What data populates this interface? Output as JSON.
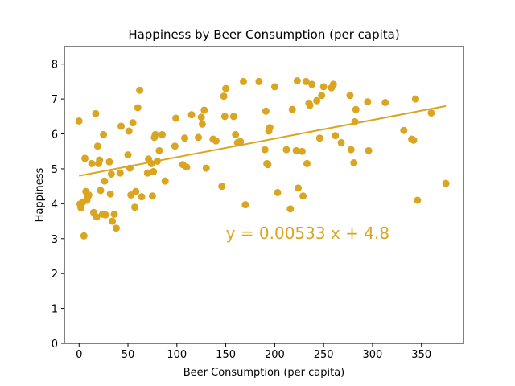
{
  "chart_data": {
    "type": "scatter",
    "title": "Happiness by Beer Consumption (per capita)",
    "xlabel": "Beer Consumption (per capita)",
    "ylabel": "Happiness",
    "xlim": [
      -15,
      393
    ],
    "ylim": [
      0,
      8.5
    ],
    "xticks": [
      0,
      50,
      100,
      150,
      200,
      250,
      300,
      350
    ],
    "yticks": [
      0,
      1,
      2,
      3,
      4,
      5,
      6,
      7,
      8
    ],
    "grid": false,
    "legend": "none",
    "color": "#DAA520",
    "series": [
      {
        "points": [
          [
            0,
            6.37
          ],
          [
            1,
            3.99
          ],
          [
            2,
            3.88
          ],
          [
            4,
            4.05
          ],
          [
            5,
            3.08
          ],
          [
            6,
            5.3
          ],
          [
            7,
            4.35
          ],
          [
            8,
            4.1
          ],
          [
            9,
            4.2
          ],
          [
            10,
            4.25
          ],
          [
            13,
            5.15
          ],
          [
            15,
            3.75
          ],
          [
            17,
            6.58
          ],
          [
            18,
            3.62
          ],
          [
            19,
            5.65
          ],
          [
            20,
            5.15
          ],
          [
            21,
            5.25
          ],
          [
            22,
            4.38
          ],
          [
            24,
            3.7
          ],
          [
            25,
            5.98
          ],
          [
            26,
            4.65
          ],
          [
            27,
            3.68
          ],
          [
            31,
            5.2
          ],
          [
            32,
            4.28
          ],
          [
            33,
            4.85
          ],
          [
            34,
            3.5
          ],
          [
            36,
            3.7
          ],
          [
            38,
            3.3
          ],
          [
            42,
            4.88
          ],
          [
            43,
            6.22
          ],
          [
            50,
            5.4
          ],
          [
            51,
            6.08
          ],
          [
            52,
            5.02
          ],
          [
            53,
            4.25
          ],
          [
            55,
            6.32
          ],
          [
            57,
            3.9
          ],
          [
            58,
            4.35
          ],
          [
            60,
            6.75
          ],
          [
            62,
            7.25
          ],
          [
            64,
            4.2
          ],
          [
            70,
            4.88
          ],
          [
            71,
            5.28
          ],
          [
            74,
            5.15
          ],
          [
            75,
            4.22
          ],
          [
            76,
            4.92
          ],
          [
            77,
            5.9
          ],
          [
            78,
            5.98
          ],
          [
            80,
            5.22
          ],
          [
            82,
            5.52
          ],
          [
            85,
            5.98
          ],
          [
            88,
            4.65
          ],
          [
            98,
            5.65
          ],
          [
            99,
            6.45
          ],
          [
            106,
            5.12
          ],
          [
            108,
            5.88
          ],
          [
            110,
            5.05
          ],
          [
            115,
            6.55
          ],
          [
            122,
            5.9
          ],
          [
            125,
            6.48
          ],
          [
            126,
            6.28
          ],
          [
            128,
            6.68
          ],
          [
            130,
            5.02
          ],
          [
            137,
            5.85
          ],
          [
            140,
            5.8
          ],
          [
            146,
            4.5
          ],
          [
            148,
            7.08
          ],
          [
            149,
            6.5
          ],
          [
            150,
            7.3
          ],
          [
            158,
            6.5
          ],
          [
            160,
            5.98
          ],
          [
            162,
            5.75
          ],
          [
            165,
            5.78
          ],
          [
            168,
            7.5
          ],
          [
            170,
            3.97
          ],
          [
            184,
            7.5
          ],
          [
            190,
            5.55
          ],
          [
            191,
            6.65
          ],
          [
            192,
            5.15
          ],
          [
            193,
            5.12
          ],
          [
            194,
            6.08
          ],
          [
            195,
            6.18
          ],
          [
            200,
            7.35
          ],
          [
            203,
            4.32
          ],
          [
            212,
            5.55
          ],
          [
            216,
            3.85
          ],
          [
            218,
            6.7
          ],
          [
            222,
            5.52
          ],
          [
            223,
            7.52
          ],
          [
            224,
            4.45
          ],
          [
            228,
            5.5
          ],
          [
            229,
            4.22
          ],
          [
            232,
            7.5
          ],
          [
            233,
            5.15
          ],
          [
            235,
            6.88
          ],
          [
            236,
            6.82
          ],
          [
            238,
            7.42
          ],
          [
            243,
            6.95
          ],
          [
            246,
            5.88
          ],
          [
            248,
            7.1
          ],
          [
            250,
            7.35
          ],
          [
            258,
            7.32
          ],
          [
            260,
            7.42
          ],
          [
            262,
            5.95
          ],
          [
            268,
            5.75
          ],
          [
            277,
            7.1
          ],
          [
            278,
            5.55
          ],
          [
            281,
            5.17
          ],
          [
            282,
            6.35
          ],
          [
            283,
            6.7
          ],
          [
            295,
            6.92
          ],
          [
            296,
            5.52
          ],
          [
            313,
            6.9
          ],
          [
            332,
            6.1
          ],
          [
            340,
            5.85
          ],
          [
            342,
            5.82
          ],
          [
            344,
            7.0
          ],
          [
            346,
            4.1
          ],
          [
            360,
            6.6
          ],
          [
            375,
            4.58
          ]
        ]
      }
    ],
    "trendline": {
      "slope": 0.00533,
      "intercept": 4.8,
      "x_range": [
        0,
        375
      ],
      "label": "y = 0.00533 x + 4.8",
      "label_at": [
        150,
        3.0
      ]
    }
  }
}
